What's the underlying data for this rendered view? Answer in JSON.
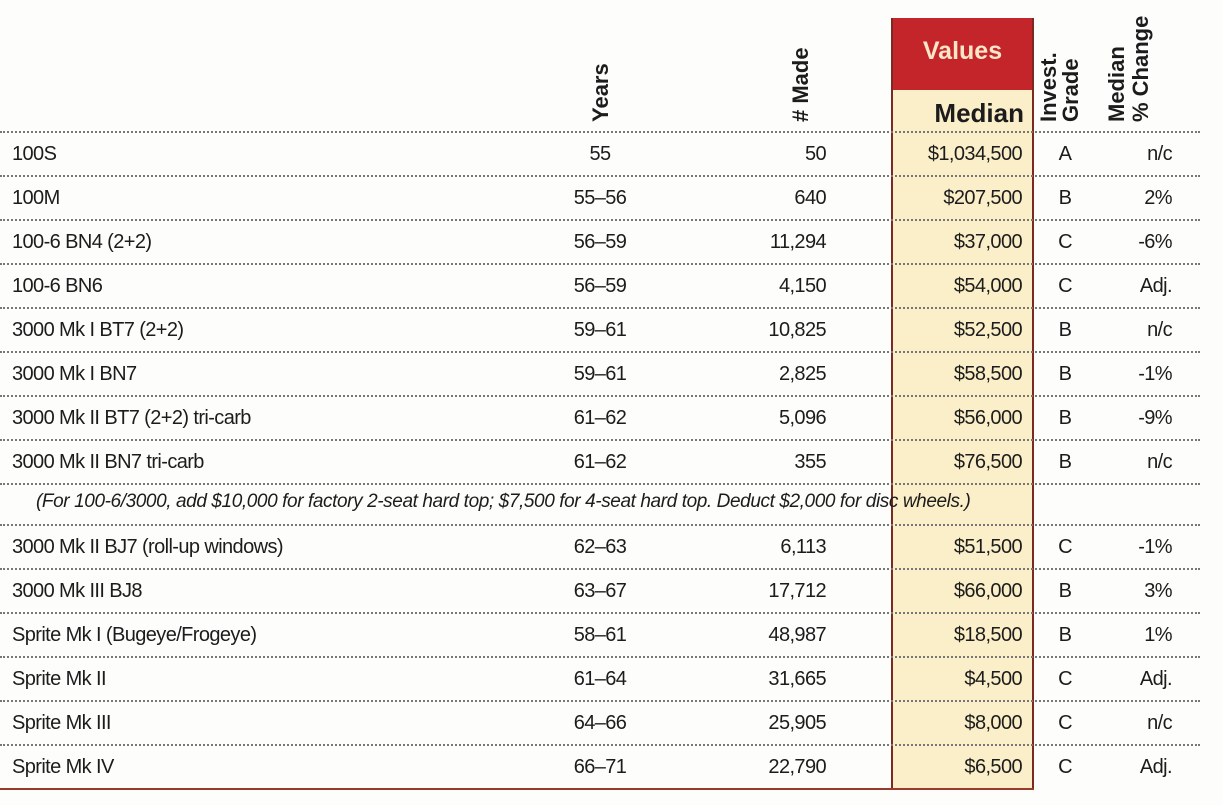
{
  "headers": {
    "years": "Years",
    "made": "# Made",
    "values": "Values",
    "median": "Median",
    "grade_line1": "Invest.",
    "grade_line2": "Grade",
    "change_line1": "Median",
    "change_line2": "% Change"
  },
  "colors": {
    "accent_red": "#c4252b",
    "cream": "#fbefc9",
    "border": "#7a2a22"
  },
  "rows_before_note": [
    {
      "model": "100S",
      "years": "55",
      "made": "50",
      "median": "$1,034,500",
      "grade": "A",
      "change": "n/c"
    },
    {
      "model": "100M",
      "years": "55–56",
      "made": "640",
      "median": "$207,500",
      "grade": "B",
      "change": "2%"
    },
    {
      "model": "100-6 BN4 (2+2)",
      "years": "56–59",
      "made": "11,294",
      "median": "$37,000",
      "grade": "C",
      "change": "-6%"
    },
    {
      "model": "100-6 BN6",
      "years": "56–59",
      "made": "4,150",
      "median": "$54,000",
      "grade": "C",
      "change": "Adj."
    },
    {
      "model": "3000 Mk I BT7 (2+2)",
      "years": "59–61",
      "made": "10,825",
      "median": "$52,500",
      "grade": "B",
      "change": "n/c"
    },
    {
      "model": "3000 Mk I BN7",
      "years": "59–61",
      "made": "2,825",
      "median": "$58,500",
      "grade": "B",
      "change": "-1%"
    },
    {
      "model": "3000 Mk II BT7 (2+2) tri-carb",
      "years": "61–62",
      "made": "5,096",
      "median": "$56,000",
      "grade": "B",
      "change": "-9%"
    },
    {
      "model": "3000 Mk II BN7 tri-carb",
      "years": "61–62",
      "made": "355",
      "median": "$76,500",
      "grade": "B",
      "change": "n/c"
    }
  ],
  "note": "(For 100-6/3000, add $10,000 for factory 2-seat hard top; $7,500 for 4-seat hard top. Deduct $2,000 for disc wheels.)",
  "rows_after_note": [
    {
      "model": "3000 Mk II BJ7 (roll-up windows)",
      "years": "62–63",
      "made": "6,113",
      "median": "$51,500",
      "grade": "C",
      "change": "-1%"
    },
    {
      "model": "3000 Mk III BJ8",
      "years": "63–67",
      "made": "17,712",
      "median": "$66,000",
      "grade": "B",
      "change": "3%"
    },
    {
      "model": "Sprite Mk I (Bugeye/Frogeye)",
      "years": "58–61",
      "made": "48,987",
      "median": "$18,500",
      "grade": "B",
      "change": "1%"
    },
    {
      "model": "Sprite Mk II",
      "years": "61–64",
      "made": "31,665",
      "median": "$4,500",
      "grade": "C",
      "change": "Adj."
    },
    {
      "model": "Sprite Mk III",
      "years": "64–66",
      "made": "25,905",
      "median": "$8,000",
      "grade": "C",
      "change": "n/c"
    },
    {
      "model": "Sprite Mk IV",
      "years": "66–71",
      "made": "22,790",
      "median": "$6,500",
      "grade": "C",
      "change": "Adj."
    }
  ]
}
